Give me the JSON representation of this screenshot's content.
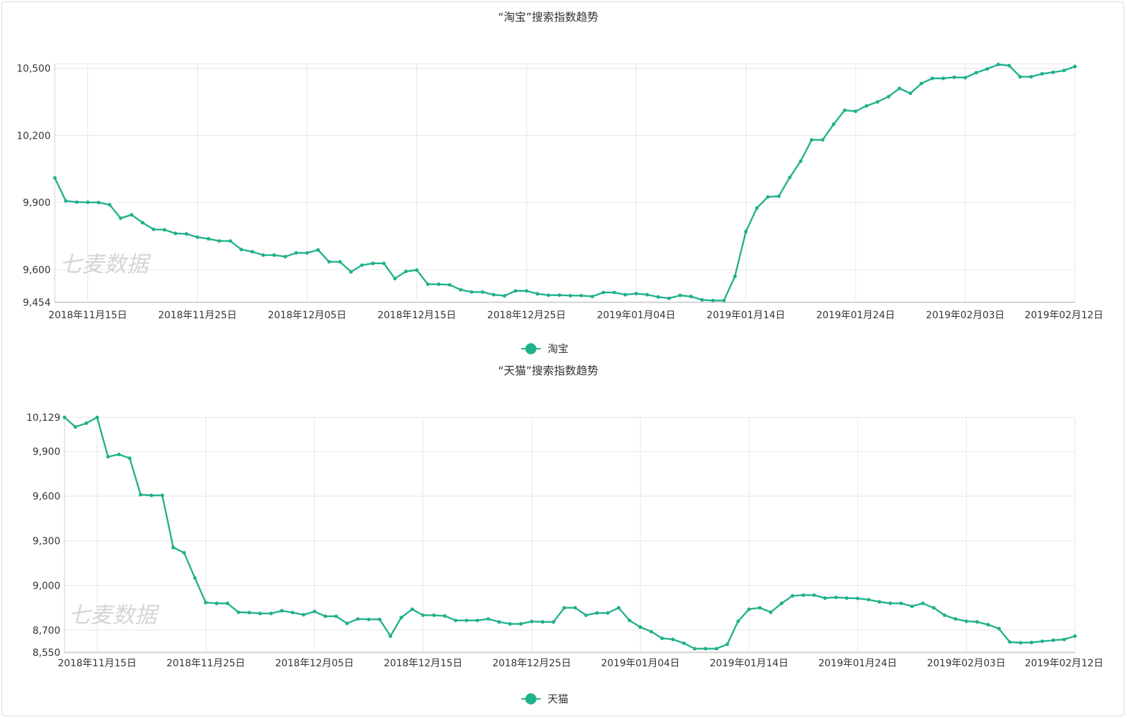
{
  "chart_data": [
    {
      "type": "line",
      "title": "“淘宝”搜索指数趋势",
      "watermark": "七麦数据",
      "series": [
        {
          "name": "淘宝",
          "color": "#20b18b",
          "values": [
            10010,
            9907,
            9902,
            9901,
            9900,
            9890,
            9830,
            9845,
            9810,
            9780,
            9778,
            9762,
            9760,
            9745,
            9738,
            9728,
            9728,
            9690,
            9680,
            9665,
            9665,
            9658,
            9675,
            9675,
            9688,
            9635,
            9635,
            9590,
            9620,
            9628,
            9628,
            9560,
            9592,
            9598,
            9535,
            9535,
            9532,
            9510,
            9500,
            9500,
            9488,
            9483,
            9505,
            9505,
            9492,
            9486,
            9486,
            9484,
            9484,
            9480,
            9498,
            9498,
            9488,
            9493,
            9488,
            9478,
            9472,
            9485,
            9480,
            9465,
            9462,
            9462,
            9570,
            9770,
            9875,
            9925,
            9928,
            10012,
            10085,
            10180,
            10180,
            10250,
            10312,
            10308,
            10332,
            10350,
            10373,
            10410,
            10388,
            10432,
            10455,
            10455,
            10460,
            10458,
            10480,
            10497,
            10517,
            10512,
            10462,
            10462,
            10475,
            10482,
            10490,
            10508
          ]
        }
      ],
      "x_start": "2018-11-12",
      "xtick_labels": [
        "2018年11月15日",
        "2018年11月25日",
        "2018年12月05日",
        "2018年12月15日",
        "2018年12月25日",
        "2019年01月04日",
        "2019年01月14日",
        "2019年01月24日",
        "2019年02月03日",
        "2019年02月12日"
      ],
      "xtick_index": [
        3,
        13,
        23,
        33,
        43,
        53,
        63,
        73,
        83,
        92
      ],
      "yticks": [
        9454,
        9600,
        9900,
        10200,
        10500
      ],
      "ytick_labels": [
        "9,454",
        "9,600",
        "9,900",
        "10,200",
        "10,500"
      ],
      "ylim": [
        9454,
        10520
      ],
      "grid": true,
      "legend": "bottom-center"
    },
    {
      "type": "line",
      "title": "“天猫”搜索指数趋势",
      "watermark": "七麦数据",
      "series": [
        {
          "name": "天猫",
          "color": "#20b18b",
          "values": [
            10129,
            10065,
            10090,
            10129,
            9865,
            9880,
            9855,
            9610,
            9605,
            9605,
            9255,
            9220,
            9050,
            8885,
            8880,
            8880,
            8820,
            8818,
            8812,
            8812,
            8830,
            8818,
            8803,
            8825,
            8793,
            8793,
            8745,
            8775,
            8772,
            8772,
            8660,
            8785,
            8840,
            8800,
            8800,
            8795,
            8765,
            8765,
            8765,
            8775,
            8755,
            8742,
            8742,
            8758,
            8755,
            8755,
            8850,
            8850,
            8800,
            8815,
            8815,
            8850,
            8765,
            8720,
            8690,
            8645,
            8638,
            8612,
            8575,
            8575,
            8575,
            8605,
            8760,
            8840,
            8850,
            8820,
            8880,
            8930,
            8935,
            8935,
            8915,
            8920,
            8915,
            8913,
            8905,
            8890,
            8880,
            8880,
            8860,
            8880,
            8850,
            8800,
            8775,
            8760,
            8755,
            8737,
            8710,
            8620,
            8615,
            8617,
            8625,
            8632,
            8637,
            8660
          ]
        }
      ],
      "x_start": "2018-11-12",
      "xtick_labels": [
        "2018年11月15日",
        "2018年11月25日",
        "2018年12月05日",
        "2018年12月15日",
        "2018年12月25日",
        "2019年01月04日",
        "2019年01月14日",
        "2019年01月24日",
        "2019年02月03日",
        "2019年02月12日"
      ],
      "xtick_index": [
        3,
        13,
        23,
        33,
        43,
        53,
        63,
        73,
        83,
        92
      ],
      "yticks": [
        8550,
        8700,
        9000,
        9300,
        9600,
        9900,
        10129
      ],
      "ytick_labels": [
        "8,550",
        "8,700",
        "9,000",
        "9,300",
        "9,600",
        "9,900",
        "10,129"
      ],
      "ylim": [
        8550,
        10129
      ],
      "grid": true,
      "legend": "bottom-center"
    }
  ]
}
